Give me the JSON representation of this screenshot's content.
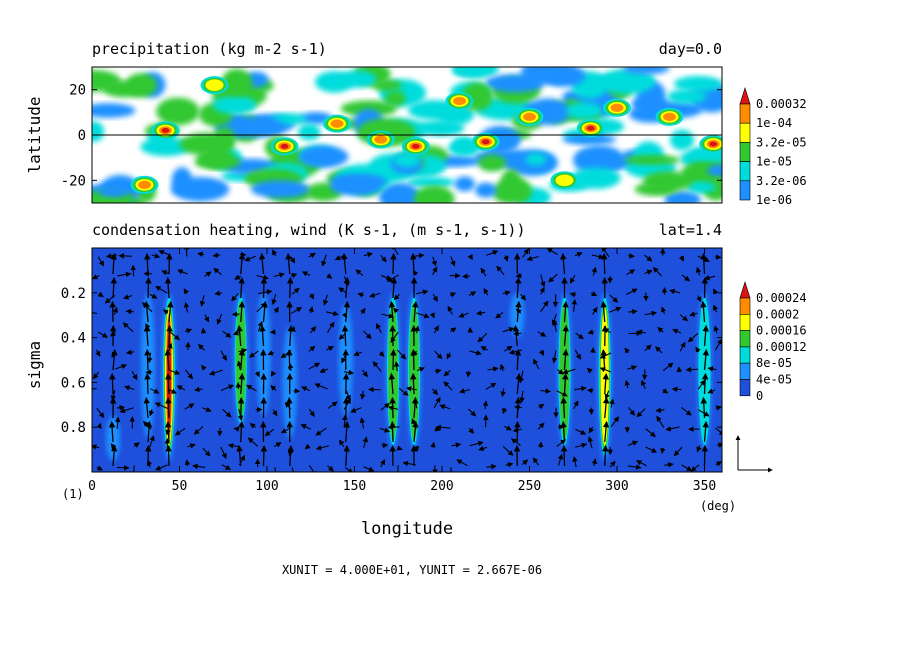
{
  "chart_data": [
    {
      "type": "heatmap",
      "title": "precipitation (kg m-2 s-1)",
      "title_right": "day=0.0",
      "xlabel": "",
      "ylabel": "latitude",
      "xlim": [
        0,
        360
      ],
      "ylim": [
        -30,
        30
      ],
      "yticks": [
        {
          "value": 20,
          "label": "20"
        },
        {
          "value": 0,
          "label": "0"
        },
        {
          "value": -20,
          "label": "-20"
        }
      ],
      "reference_line_y": 0,
      "colorbar": {
        "levels": [
          "1e-06",
          "3.2e-06",
          "1e-05",
          "3.2e-05",
          "1e-04",
          "0.00032"
        ],
        "colors": [
          "#ffffff",
          "#1e90ff",
          "#00dcdc",
          "#32c832",
          "#ffff00",
          "#ff8c00",
          "#dc1414"
        ]
      },
      "features": [
        {
          "lon": 42,
          "lat": 2,
          "level": 6
        },
        {
          "lon": 30,
          "lat": -22,
          "level": 5
        },
        {
          "lon": 110,
          "lat": -5,
          "level": 6
        },
        {
          "lon": 140,
          "lat": 5,
          "level": 5
        },
        {
          "lon": 165,
          "lat": -2,
          "level": 5
        },
        {
          "lon": 185,
          "lat": -5,
          "level": 6
        },
        {
          "lon": 210,
          "lat": 15,
          "level": 5
        },
        {
          "lon": 225,
          "lat": -3,
          "level": 6
        },
        {
          "lon": 250,
          "lat": 8,
          "level": 5
        },
        {
          "lon": 285,
          "lat": 3,
          "level": 6
        },
        {
          "lon": 300,
          "lat": 12,
          "level": 5
        },
        {
          "lon": 330,
          "lat": 8,
          "level": 5
        },
        {
          "lon": 355,
          "lat": -4,
          "level": 6
        },
        {
          "lon": 70,
          "lat": 22,
          "level": 4
        },
        {
          "lon": 270,
          "lat": -20,
          "level": 4
        }
      ]
    },
    {
      "type": "heatmap",
      "title": "condensation heating, wind (K s-1, (m s-1, s-1))",
      "title_right": "lat=1.4",
      "xlabel": "longitude",
      "xunit": "(deg)",
      "ylabel": "sigma",
      "xlim": [
        0,
        360
      ],
      "ylim": [
        1.0,
        0.0
      ],
      "xticks": [
        0,
        50,
        100,
        150,
        200,
        250,
        300,
        350
      ],
      "yticks": [
        {
          "value": 0.2,
          "label": "0.2"
        },
        {
          "value": 0.4,
          "label": "0.4"
        },
        {
          "value": 0.6,
          "label": "0.6"
        },
        {
          "value": 0.8,
          "label": "0.8"
        }
      ],
      "colorbar": {
        "levels": [
          "0",
          "4e-05",
          "8e-05",
          "0.00012",
          "0.00016",
          "0.0002",
          "0.00024"
        ],
        "colors": [
          "#1e50dc",
          "#1e90ff",
          "#00dcdc",
          "#32c832",
          "#ffff00",
          "#ff8c00",
          "#dc1414"
        ]
      },
      "heating_columns": [
        {
          "lon": 12,
          "sig_top": 0.75,
          "sig_bot": 0.95,
          "level": 1
        },
        {
          "lon": 32,
          "sig_top": 0.2,
          "sig_bot": 0.85,
          "level": 1
        },
        {
          "lon": 44,
          "sig_top": 0.2,
          "sig_bot": 0.95,
          "level": 6
        },
        {
          "lon": 85,
          "sig_top": 0.2,
          "sig_bot": 0.8,
          "level": 3
        },
        {
          "lon": 98,
          "sig_top": 0.2,
          "sig_bot": 0.75,
          "level": 1
        },
        {
          "lon": 113,
          "sig_top": 0.35,
          "sig_bot": 0.85,
          "level": 1
        },
        {
          "lon": 145,
          "sig_top": 0.25,
          "sig_bot": 0.75,
          "level": 1
        },
        {
          "lon": 172,
          "sig_top": 0.2,
          "sig_bot": 0.9,
          "level": 3
        },
        {
          "lon": 184,
          "sig_top": 0.2,
          "sig_bot": 0.9,
          "level": 3
        },
        {
          "lon": 243,
          "sig_top": 0.2,
          "sig_bot": 0.4,
          "level": 1
        },
        {
          "lon": 270,
          "sig_top": 0.2,
          "sig_bot": 0.9,
          "level": 3
        },
        {
          "lon": 293,
          "sig_top": 0.2,
          "sig_bot": 0.95,
          "level": 4
        },
        {
          "lon": 350,
          "sig_top": 0.2,
          "sig_bot": 0.9,
          "level": 2
        }
      ],
      "vector_scale": {
        "xunit": "4.000E+01",
        "yunit": "2.667E-06"
      },
      "panel_label": "(1)"
    }
  ],
  "footer": {
    "unit_text": "XUNIT = 4.000E+01, YUNIT = 2.667E-06"
  }
}
